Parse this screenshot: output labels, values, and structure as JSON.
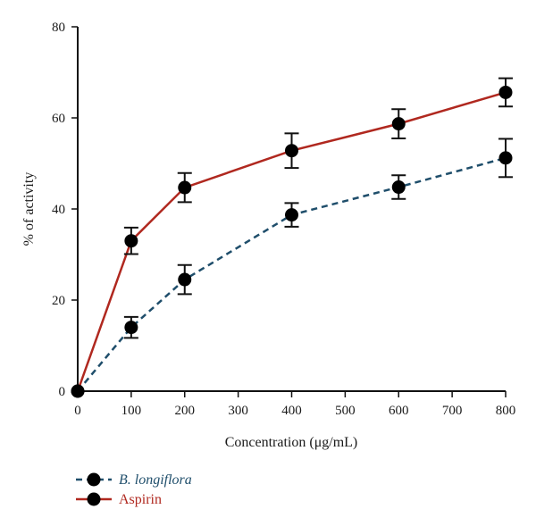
{
  "chart_data": {
    "type": "line",
    "title": "",
    "xlabel": "Concentration (μg/mL)",
    "ylabel": "% of activity",
    "xlim": [
      0,
      800
    ],
    "ylim": [
      0,
      80
    ],
    "xticks": [
      0,
      100,
      200,
      300,
      400,
      500,
      600,
      700,
      800
    ],
    "yticks": [
      0,
      20,
      40,
      60,
      80
    ],
    "grid": false,
    "legend": "bottom-left",
    "series": [
      {
        "name": "B. longiflora",
        "color": "#1f4e6b",
        "line_style": "dashed",
        "name_style": "italic",
        "x": [
          0,
          100,
          200,
          400,
          600,
          800
        ],
        "y": [
          0,
          14,
          24.5,
          38.7,
          44.8,
          51.2
        ],
        "error": [
          0,
          2.3,
          3.2,
          2.6,
          2.6,
          4.2
        ]
      },
      {
        "name": "Aspirin",
        "color": "#b0281f",
        "line_style": "solid",
        "name_style": "normal",
        "x": [
          0,
          100,
          200,
          400,
          600,
          800
        ],
        "y": [
          0,
          33,
          44.7,
          52.8,
          58.7,
          65.6
        ],
        "error": [
          0,
          2.9,
          3.2,
          3.8,
          3.2,
          3.1
        ]
      }
    ]
  }
}
